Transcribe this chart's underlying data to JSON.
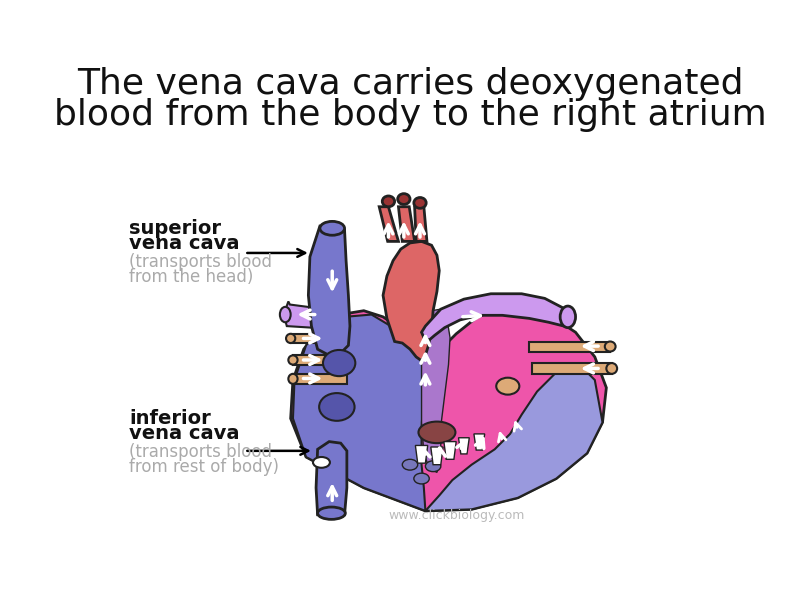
{
  "title_line1": "The vena cava carries deoxygenated",
  "title_line2": "blood from the body to the right atrium",
  "title_fontsize": 26,
  "title_color": "#111111",
  "bg_color": "#ffffff",
  "label_superior_1": "superior",
  "label_superior_2": "vena cava",
  "label_superior_3": "(transports blood",
  "label_superior_4": "from the head)",
  "label_inferior_1": "inferior",
  "label_inferior_2": "vena cava",
  "label_inferior_3": "(transports blood",
  "label_inferior_4": "from rest of body)",
  "label_black_color": "#111111",
  "label_gray_color": "#aaaaaa",
  "watermark": "www.clickbiology.com",
  "watermark_color": "#bbbbbb",
  "c_blue": "#7777cc",
  "c_blue2": "#9999dd",
  "c_pink": "#ee55aa",
  "c_pink2": "#ee77bb",
  "c_red": "#cc4444",
  "c_red2": "#dd6666",
  "c_red_dark": "#993333",
  "c_purple": "#aa77cc",
  "c_purple2": "#cc99ee",
  "c_tan": "#ddaa77",
  "c_outline": "#222222",
  "c_white": "#ffffff",
  "c_blue_dark": "#5555aa",
  "c_maroon": "#884444"
}
